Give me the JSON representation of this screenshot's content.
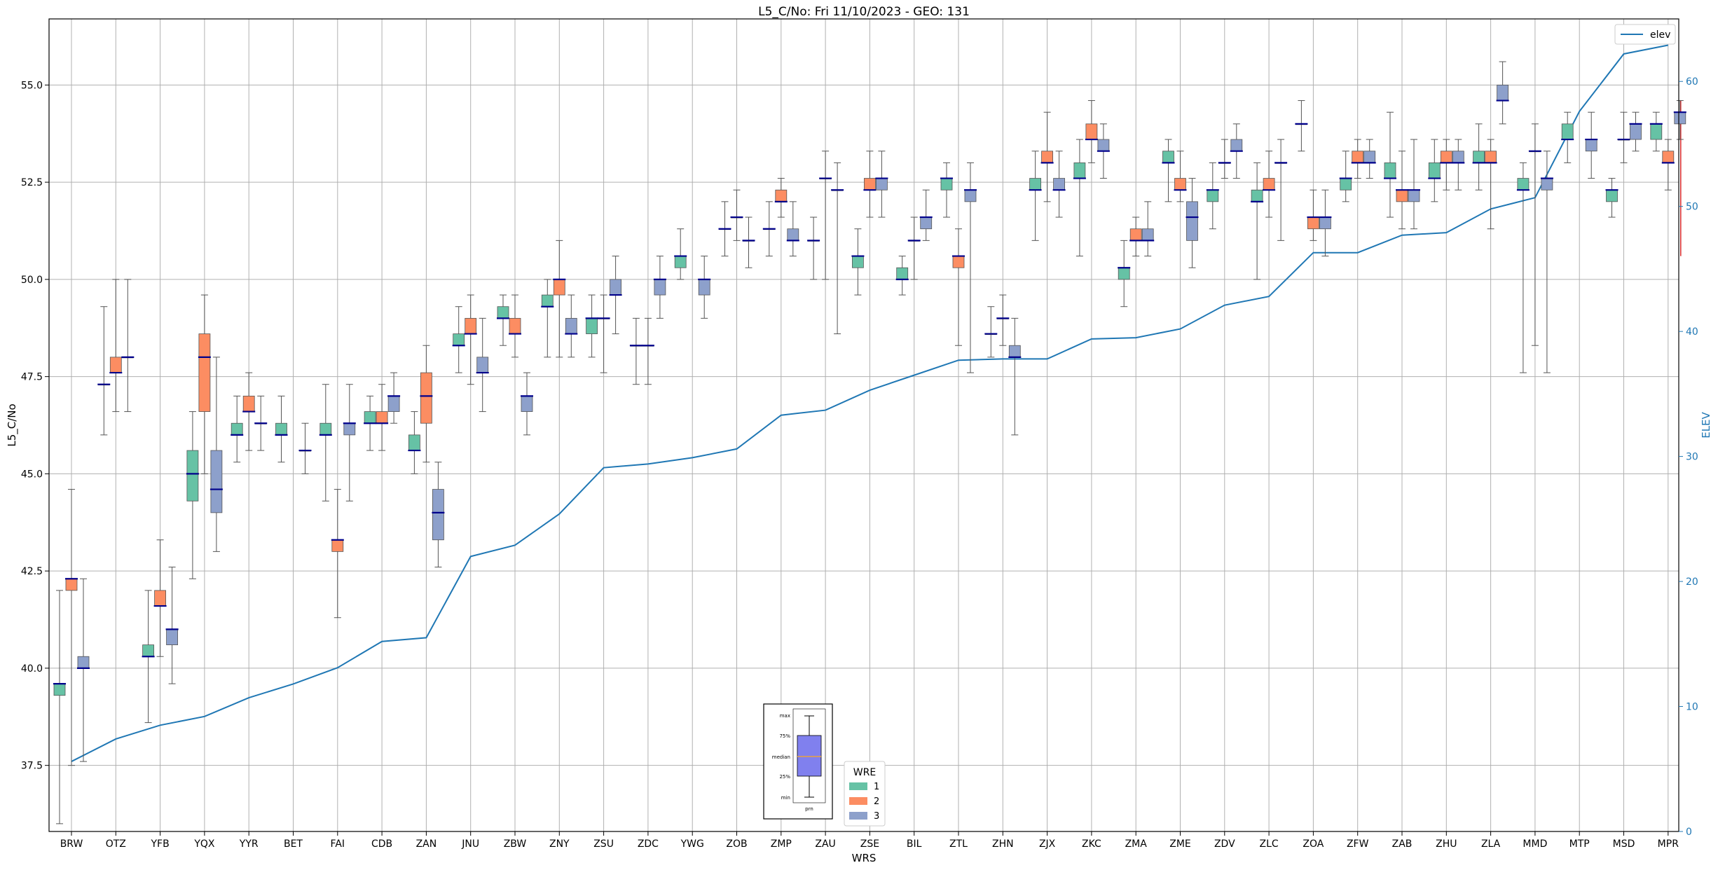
{
  "chart_data": {
    "type": "box",
    "title": "L5_C/No: Fri 11/10/2023 - GEO: 131",
    "xlabel": "WRS",
    "ylabel": "L5_C/No",
    "y2label": "ELEV",
    "ylim": [
      35.8,
      56.7
    ],
    "y2lim": [
      0,
      65
    ],
    "yticks": [
      "37.5",
      "40.0",
      "42.5",
      "45.0",
      "47.5",
      "50.0",
      "52.5",
      "55.0"
    ],
    "y2ticks": [
      "0",
      "10",
      "20",
      "30",
      "40",
      "50",
      "60"
    ],
    "grid": true,
    "categories": [
      "BRW",
      "OTZ",
      "YFB",
      "YQX",
      "YYR",
      "BET",
      "FAI",
      "CDB",
      "ZAN",
      "JNU",
      "ZBW",
      "ZNY",
      "ZSU",
      "ZDC",
      "YWG",
      "ZOB",
      "ZMP",
      "ZAU",
      "ZSE",
      "BIL",
      "ZTL",
      "ZHN",
      "ZJX",
      "ZKC",
      "ZMA",
      "ZME",
      "ZDV",
      "ZLC",
      "ZOA",
      "ZFW",
      "ZAB",
      "ZHU",
      "ZLA",
      "MMD",
      "MTP",
      "MSD",
      "MPR"
    ],
    "series_colors": {
      "1": "#66c2a5",
      "2": "#fc8d62",
      "3": "#8da0cb"
    },
    "boxes": [
      {
        "cat": 0,
        "wre": "1",
        "min": 36.0,
        "q1": 39.3,
        "med": 39.6,
        "q3": 39.6,
        "max": 42.0
      },
      {
        "cat": 0,
        "wre": "2",
        "min": 37.5,
        "q1": 42.0,
        "med": 42.3,
        "q3": 42.3,
        "max": 44.6
      },
      {
        "cat": 0,
        "wre": "3",
        "min": 37.6,
        "q1": 40.0,
        "med": 40.0,
        "q3": 40.3,
        "max": 42.3
      },
      {
        "cat": 1,
        "wre": "1",
        "min": 46.0,
        "q1": 47.3,
        "med": 47.3,
        "q3": 47.3,
        "max": 49.3
      },
      {
        "cat": 1,
        "wre": "2",
        "min": 46.6,
        "q1": 47.6,
        "med": 47.6,
        "q3": 48.0,
        "max": 50.0
      },
      {
        "cat": 1,
        "wre": "3",
        "min": 46.6,
        "q1": 48.0,
        "med": 48.0,
        "q3": 48.0,
        "max": 50.0
      },
      {
        "cat": 2,
        "wre": "1",
        "min": 38.6,
        "q1": 40.3,
        "med": 40.3,
        "q3": 40.6,
        "max": 42.0
      },
      {
        "cat": 2,
        "wre": "2",
        "min": 40.3,
        "q1": 41.6,
        "med": 41.6,
        "q3": 42.0,
        "max": 43.3
      },
      {
        "cat": 2,
        "wre": "3",
        "min": 39.6,
        "q1": 40.6,
        "med": 41.0,
        "q3": 41.0,
        "max": 42.6
      },
      {
        "cat": 3,
        "wre": "1",
        "min": 42.3,
        "q1": 44.3,
        "med": 45.0,
        "q3": 45.6,
        "max": 46.6
      },
      {
        "cat": 3,
        "wre": "2",
        "min": 45.0,
        "q1": 46.6,
        "med": 48.0,
        "q3": 48.6,
        "max": 49.6
      },
      {
        "cat": 3,
        "wre": "3",
        "min": 43.0,
        "q1": 44.0,
        "med": 44.6,
        "q3": 45.6,
        "max": 48.0
      },
      {
        "cat": 4,
        "wre": "1",
        "min": 45.3,
        "q1": 46.0,
        "med": 46.0,
        "q3": 46.3,
        "max": 47.0
      },
      {
        "cat": 4,
        "wre": "2",
        "min": 45.6,
        "q1": 46.6,
        "med": 46.6,
        "q3": 47.0,
        "max": 47.6
      },
      {
        "cat": 4,
        "wre": "3",
        "min": 45.6,
        "q1": 46.3,
        "med": 46.3,
        "q3": 46.3,
        "max": 47.0
      },
      {
        "cat": 5,
        "wre": "3",
        "min": 45.0,
        "q1": 45.6,
        "med": 45.6,
        "q3": 45.6,
        "max": 46.3
      },
      {
        "cat": 6,
        "wre": "1",
        "min": 44.3,
        "q1": 46.0,
        "med": 46.0,
        "q3": 46.3,
        "max": 47.3
      },
      {
        "cat": 6,
        "wre": "2",
        "min": 41.3,
        "q1": 43.0,
        "med": 43.3,
        "q3": 43.3,
        "max": 44.6
      },
      {
        "cat": 6,
        "wre": "3",
        "min": 44.3,
        "q1": 46.0,
        "med": 46.3,
        "q3": 46.3,
        "max": 47.3
      },
      {
        "cat": 5,
        "wre": "1",
        "min": 45.3,
        "q1": 46.0,
        "med": 46.0,
        "q3": 46.3,
        "max": 47.0
      },
      {
        "cat": 7,
        "wre": "1",
        "min": 45.6,
        "q1": 46.3,
        "med": 46.3,
        "q3": 46.6,
        "max": 47.0
      },
      {
        "cat": 7,
        "wre": "2",
        "min": 45.6,
        "q1": 46.3,
        "med": 46.3,
        "q3": 46.6,
        "max": 47.3
      },
      {
        "cat": 7,
        "wre": "3",
        "min": 46.3,
        "q1": 46.6,
        "med": 47.0,
        "q3": 47.0,
        "max": 47.6
      },
      {
        "cat": 8,
        "wre": "1",
        "min": 45.0,
        "q1": 45.6,
        "med": 45.6,
        "q3": 46.0,
        "max": 46.6
      },
      {
        "cat": 8,
        "wre": "2",
        "min": 45.3,
        "q1": 46.3,
        "med": 47.0,
        "q3": 47.6,
        "max": 48.3
      },
      {
        "cat": 8,
        "wre": "3",
        "min": 42.6,
        "q1": 43.3,
        "med": 44.0,
        "q3": 44.6,
        "max": 45.3
      },
      {
        "cat": 9,
        "wre": "1",
        "min": 47.6,
        "q1": 48.3,
        "med": 48.3,
        "q3": 48.6,
        "max": 49.3
      },
      {
        "cat": 9,
        "wre": "2",
        "min": 47.3,
        "q1": 48.6,
        "med": 48.6,
        "q3": 49.0,
        "max": 49.6
      },
      {
        "cat": 9,
        "wre": "3",
        "min": 46.6,
        "q1": 47.6,
        "med": 47.6,
        "q3": 48.0,
        "max": 49.0
      },
      {
        "cat": 10,
        "wre": "1",
        "min": 48.3,
        "q1": 49.0,
        "med": 49.0,
        "q3": 49.3,
        "max": 49.6
      },
      {
        "cat": 10,
        "wre": "2",
        "min": 48.0,
        "q1": 48.6,
        "med": 48.6,
        "q3": 49.0,
        "max": 49.6
      },
      {
        "cat": 10,
        "wre": "3",
        "min": 46.0,
        "q1": 46.6,
        "med": 47.0,
        "q3": 47.0,
        "max": 47.6
      },
      {
        "cat": 11,
        "wre": "1",
        "min": 48.0,
        "q1": 49.3,
        "med": 49.3,
        "q3": 49.6,
        "max": 50.0
      },
      {
        "cat": 11,
        "wre": "2",
        "min": 48.0,
        "q1": 49.6,
        "med": 50.0,
        "q3": 50.0,
        "max": 51.0
      },
      {
        "cat": 11,
        "wre": "3",
        "min": 48.0,
        "q1": 48.6,
        "med": 48.6,
        "q3": 49.0,
        "max": 49.6
      },
      {
        "cat": 12,
        "wre": "1",
        "min": 48.0,
        "q1": 48.6,
        "med": 49.0,
        "q3": 49.0,
        "max": 49.6
      },
      {
        "cat": 12,
        "wre": "2",
        "min": 47.6,
        "q1": 49.0,
        "med": 49.0,
        "q3": 49.0,
        "max": 49.6
      },
      {
        "cat": 12,
        "wre": "3",
        "min": 48.6,
        "q1": 49.6,
        "med": 49.6,
        "q3": 50.0,
        "max": 50.6
      },
      {
        "cat": 13,
        "wre": "1",
        "min": 47.3,
        "q1": 48.3,
        "med": 48.3,
        "q3": 48.3,
        "max": 49.0
      },
      {
        "cat": 13,
        "wre": "2",
        "min": 47.3,
        "q1": 48.3,
        "med": 48.3,
        "q3": 48.3,
        "max": 49.0
      },
      {
        "cat": 13,
        "wre": "3",
        "min": 49.0,
        "q1": 49.6,
        "med": 50.0,
        "q3": 50.0,
        "max": 50.6
      },
      {
        "cat": 14,
        "wre": "1",
        "min": 50.0,
        "q1": 50.3,
        "med": 50.6,
        "q3": 50.6,
        "max": 51.3
      },
      {
        "cat": 14,
        "wre": "3",
        "min": 49.0,
        "q1": 49.6,
        "med": 50.0,
        "q3": 50.0,
        "max": 50.6
      },
      {
        "cat": 15,
        "wre": "1",
        "min": 50.6,
        "q1": 51.3,
        "med": 51.3,
        "q3": 51.3,
        "max": 52.0
      },
      {
        "cat": 15,
        "wre": "2",
        "min": 51.0,
        "q1": 51.6,
        "med": 51.6,
        "q3": 51.6,
        "max": 52.3
      },
      {
        "cat": 15,
        "wre": "3",
        "min": 50.3,
        "q1": 51.0,
        "med": 51.0,
        "q3": 51.0,
        "max": 51.6
      },
      {
        "cat": 16,
        "wre": "1",
        "min": 50.6,
        "q1": 51.3,
        "med": 51.3,
        "q3": 51.3,
        "max": 52.0
      },
      {
        "cat": 16,
        "wre": "2",
        "min": 51.6,
        "q1": 52.0,
        "med": 52.0,
        "q3": 52.3,
        "max": 52.6
      },
      {
        "cat": 16,
        "wre": "3",
        "min": 50.6,
        "q1": 51.0,
        "med": 51.0,
        "q3": 51.3,
        "max": 52.0
      },
      {
        "cat": 17,
        "wre": "1",
        "min": 50.0,
        "q1": 51.0,
        "med": 51.0,
        "q3": 51.0,
        "max": 51.6
      },
      {
        "cat": 17,
        "wre": "2",
        "min": 50.0,
        "q1": 52.6,
        "med": 52.6,
        "q3": 52.6,
        "max": 53.3
      },
      {
        "cat": 17,
        "wre": "3",
        "min": 48.6,
        "q1": 52.3,
        "med": 52.3,
        "q3": 52.3,
        "max": 53.0
      },
      {
        "cat": 18,
        "wre": "1",
        "min": 49.6,
        "q1": 50.3,
        "med": 50.6,
        "q3": 50.6,
        "max": 51.3
      },
      {
        "cat": 18,
        "wre": "2",
        "min": 51.6,
        "q1": 52.3,
        "med": 52.3,
        "q3": 52.6,
        "max": 53.3
      },
      {
        "cat": 18,
        "wre": "3",
        "min": 51.6,
        "q1": 52.3,
        "med": 52.6,
        "q3": 52.6,
        "max": 53.3
      },
      {
        "cat": 19,
        "wre": "1",
        "min": 49.6,
        "q1": 50.0,
        "med": 50.0,
        "q3": 50.3,
        "max": 50.6
      },
      {
        "cat": 19,
        "wre": "2",
        "min": 50.0,
        "q1": 51.0,
        "med": 51.0,
        "q3": 51.0,
        "max": 51.6
      },
      {
        "cat": 19,
        "wre": "3",
        "min": 51.0,
        "q1": 51.3,
        "med": 51.6,
        "q3": 51.6,
        "max": 52.3
      },
      {
        "cat": 20,
        "wre": "1",
        "min": 51.6,
        "q1": 52.3,
        "med": 52.6,
        "q3": 52.6,
        "max": 53.0
      },
      {
        "cat": 20,
        "wre": "2",
        "min": 48.3,
        "q1": 50.3,
        "med": 50.6,
        "q3": 50.6,
        "max": 51.3
      },
      {
        "cat": 20,
        "wre": "3",
        "min": 47.6,
        "q1": 52.0,
        "med": 52.3,
        "q3": 52.3,
        "max": 53.0
      },
      {
        "cat": 21,
        "wre": "1",
        "min": 48.0,
        "q1": 48.6,
        "med": 48.6,
        "q3": 48.6,
        "max": 49.3
      },
      {
        "cat": 21,
        "wre": "2",
        "min": 48.3,
        "q1": 49.0,
        "med": 49.0,
        "q3": 49.0,
        "max": 49.6
      },
      {
        "cat": 21,
        "wre": "3",
        "min": 46.0,
        "q1": 48.0,
        "med": 48.0,
        "q3": 48.3,
        "max": 49.0
      },
      {
        "cat": 22,
        "wre": "1",
        "min": 51.0,
        "q1": 52.3,
        "med": 52.3,
        "q3": 52.6,
        "max": 53.3
      },
      {
        "cat": 22,
        "wre": "2",
        "min": 52.0,
        "q1": 53.0,
        "med": 53.0,
        "q3": 53.3,
        "max": 54.3
      },
      {
        "cat": 22,
        "wre": "3",
        "min": 51.6,
        "q1": 52.3,
        "med": 52.3,
        "q3": 52.6,
        "max": 53.3
      },
      {
        "cat": 23,
        "wre": "1",
        "min": 50.6,
        "q1": 52.6,
        "med": 52.6,
        "q3": 53.0,
        "max": 53.6
      },
      {
        "cat": 23,
        "wre": "2",
        "min": 53.0,
        "q1": 53.6,
        "med": 53.6,
        "q3": 54.0,
        "max": 54.6
      },
      {
        "cat": 23,
        "wre": "3",
        "min": 52.6,
        "q1": 53.3,
        "med": 53.3,
        "q3": 53.6,
        "max": 54.0
      },
      {
        "cat": 24,
        "wre": "1",
        "min": 49.3,
        "q1": 50.0,
        "med": 50.3,
        "q3": 50.3,
        "max": 51.0
      },
      {
        "cat": 24,
        "wre": "2",
        "min": 50.6,
        "q1": 51.0,
        "med": 51.0,
        "q3": 51.3,
        "max": 51.6
      },
      {
        "cat": 24,
        "wre": "3",
        "min": 50.6,
        "q1": 51.0,
        "med": 51.0,
        "q3": 51.3,
        "max": 52.0
      },
      {
        "cat": 25,
        "wre": "1",
        "min": 52.0,
        "q1": 53.0,
        "med": 53.0,
        "q3": 53.3,
        "max": 53.6
      },
      {
        "cat": 25,
        "wre": "2",
        "min": 52.0,
        "q1": 52.3,
        "med": 52.3,
        "q3": 52.6,
        "max": 53.3
      },
      {
        "cat": 25,
        "wre": "3",
        "min": 50.3,
        "q1": 51.0,
        "med": 51.6,
        "q3": 52.0,
        "max": 52.6
      },
      {
        "cat": 26,
        "wre": "1",
        "min": 51.3,
        "q1": 52.0,
        "med": 52.3,
        "q3": 52.3,
        "max": 53.0
      },
      {
        "cat": 26,
        "wre": "2",
        "min": 52.6,
        "q1": 53.0,
        "med": 53.0,
        "q3": 53.0,
        "max": 53.6
      },
      {
        "cat": 26,
        "wre": "3",
        "min": 52.6,
        "q1": 53.3,
        "med": 53.3,
        "q3": 53.6,
        "max": 54.0
      },
      {
        "cat": 27,
        "wre": "1",
        "min": 50.0,
        "q1": 52.0,
        "med": 52.0,
        "q3": 52.3,
        "max": 53.0
      },
      {
        "cat": 27,
        "wre": "2",
        "min": 51.6,
        "q1": 52.3,
        "med": 52.3,
        "q3": 52.6,
        "max": 53.3
      },
      {
        "cat": 27,
        "wre": "3",
        "min": 51.0,
        "q1": 53.0,
        "med": 53.0,
        "q3": 53.0,
        "max": 53.6
      },
      {
        "cat": 28,
        "wre": "1",
        "min": 53.3,
        "q1": 54.0,
        "med": 54.0,
        "q3": 54.0,
        "max": 54.6
      },
      {
        "cat": 28,
        "wre": "2",
        "min": 51.0,
        "q1": 51.3,
        "med": 51.6,
        "q3": 51.6,
        "max": 52.3
      },
      {
        "cat": 28,
        "wre": "3",
        "min": 50.6,
        "q1": 51.3,
        "med": 51.6,
        "q3": 51.6,
        "max": 52.3
      },
      {
        "cat": 29,
        "wre": "1",
        "min": 52.0,
        "q1": 52.3,
        "med": 52.6,
        "q3": 52.6,
        "max": 53.3
      },
      {
        "cat": 29,
        "wre": "2",
        "min": 52.6,
        "q1": 53.0,
        "med": 53.0,
        "q3": 53.3,
        "max": 53.6
      },
      {
        "cat": 29,
        "wre": "3",
        "min": 52.6,
        "q1": 53.0,
        "med": 53.0,
        "q3": 53.3,
        "max": 53.6
      },
      {
        "cat": 30,
        "wre": "1",
        "min": 51.6,
        "q1": 52.6,
        "med": 52.6,
        "q3": 53.0,
        "max": 54.3
      },
      {
        "cat": 30,
        "wre": "2",
        "min": 51.3,
        "q1": 52.0,
        "med": 52.3,
        "q3": 52.3,
        "max": 53.3
      },
      {
        "cat": 30,
        "wre": "3",
        "min": 51.3,
        "q1": 52.0,
        "med": 52.3,
        "q3": 52.3,
        "max": 53.6
      },
      {
        "cat": 31,
        "wre": "1",
        "min": 52.0,
        "q1": 52.6,
        "med": 52.6,
        "q3": 53.0,
        "max": 53.6
      },
      {
        "cat": 31,
        "wre": "2",
        "min": 52.3,
        "q1": 53.0,
        "med": 53.0,
        "q3": 53.3,
        "max": 53.6
      },
      {
        "cat": 31,
        "wre": "3",
        "min": 52.3,
        "q1": 53.0,
        "med": 53.0,
        "q3": 53.3,
        "max": 53.6
      },
      {
        "cat": 32,
        "wre": "1",
        "min": 52.3,
        "q1": 53.0,
        "med": 53.0,
        "q3": 53.3,
        "max": 54.0
      },
      {
        "cat": 32,
        "wre": "2",
        "min": 51.3,
        "q1": 53.0,
        "med": 53.0,
        "q3": 53.3,
        "max": 53.6
      },
      {
        "cat": 32,
        "wre": "3",
        "min": 54.0,
        "q1": 54.6,
        "med": 54.6,
        "q3": 55.0,
        "max": 55.6
      },
      {
        "cat": 33,
        "wre": "1",
        "min": 47.6,
        "q1": 52.3,
        "med": 52.3,
        "q3": 52.6,
        "max": 53.0
      },
      {
        "cat": 33,
        "wre": "2",
        "min": 48.3,
        "q1": 53.3,
        "med": 53.3,
        "q3": 53.3,
        "max": 54.0
      },
      {
        "cat": 33,
        "wre": "3",
        "min": 47.6,
        "q1": 52.3,
        "med": 52.6,
        "q3": 52.6,
        "max": 53.3
      },
      {
        "cat": 34,
        "wre": "1",
        "min": 53.0,
        "q1": 53.6,
        "med": 53.6,
        "q3": 54.0,
        "max": 54.3
      },
      {
        "cat": 34,
        "wre": "3",
        "min": 52.6,
        "q1": 53.3,
        "med": 53.6,
        "q3": 53.6,
        "max": 54.3
      },
      {
        "cat": 35,
        "wre": "1",
        "min": 51.6,
        "q1": 52.0,
        "med": 52.3,
        "q3": 52.3,
        "max": 52.6
      },
      {
        "cat": 35,
        "wre": "2",
        "min": 53.0,
        "q1": 53.6,
        "med": 53.6,
        "q3": 53.6,
        "max": 54.3
      },
      {
        "cat": 35,
        "wre": "3",
        "min": 53.3,
        "q1": 53.6,
        "med": 54.0,
        "q3": 54.0,
        "max": 54.3
      },
      {
        "cat": 36,
        "wre": "1",
        "min": 53.3,
        "q1": 53.6,
        "med": 54.0,
        "q3": 54.0,
        "max": 54.3
      },
      {
        "cat": 36,
        "wre": "2",
        "min": 52.3,
        "q1": 53.0,
        "med": 53.0,
        "q3": 53.3,
        "max": 53.6
      },
      {
        "cat": 36,
        "wre": "3",
        "min": 53.6,
        "q1": 54.0,
        "med": 54.3,
        "q3": 54.3,
        "max": 54.6
      }
    ],
    "red_marker": {
      "cat": 36,
      "min": 50.6,
      "max": 54.6
    },
    "elev_series": {
      "name": "elev",
      "color": "#1f77b4",
      "values": [
        5.6,
        7.4,
        8.5,
        9.2,
        10.7,
        11.8,
        13.1,
        15.2,
        15.5,
        22.0,
        22.9,
        25.4,
        29.1,
        29.4,
        29.9,
        30.6,
        33.3,
        33.7,
        35.3,
        36.5,
        37.7,
        37.8,
        37.8,
        39.4,
        39.5,
        40.2,
        42.1,
        42.8,
        46.3,
        46.3,
        47.7,
        47.9,
        49.8,
        50.7,
        57.6,
        62.2,
        62.9
      ]
    },
    "legend_elev": {
      "label": "elev",
      "placement": "top-right"
    },
    "legend_wre": {
      "title": "WRE",
      "entries": [
        "1",
        "2",
        "3"
      ],
      "placement": "bottom-center"
    },
    "inset_key": {
      "labels": [
        "max",
        "75%",
        "median",
        "25%",
        "min"
      ],
      "xlabel": "prn"
    }
  }
}
